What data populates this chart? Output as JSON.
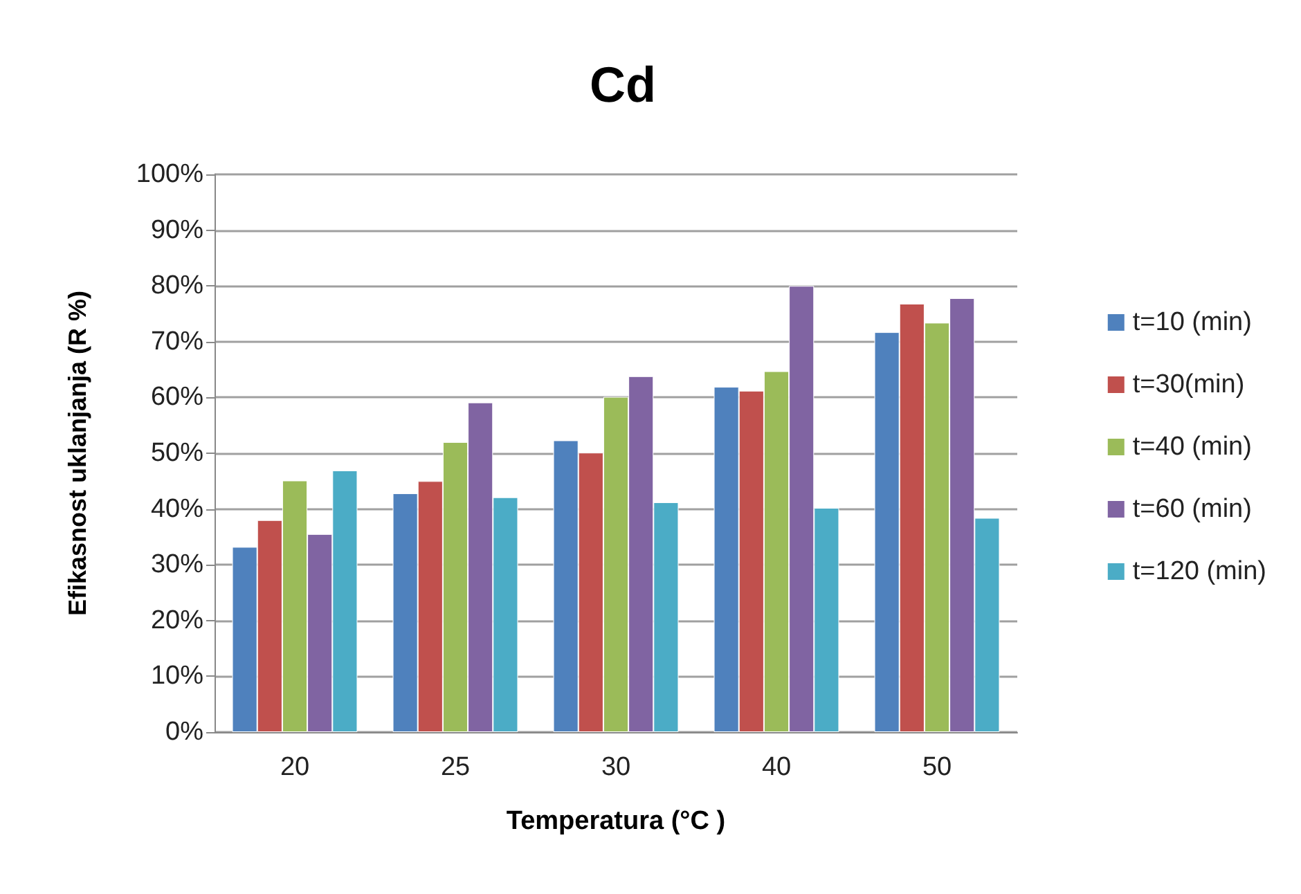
{
  "chart_data": {
    "type": "bar",
    "title": "Cd",
    "xlabel": "Temperatura (°C )",
    "ylabel": "Efikasnost uklanjanja (R %)",
    "categories": [
      "20",
      "25",
      "30",
      "40",
      "50"
    ],
    "series": [
      {
        "name": "t=10 (min)",
        "color": "#4f81bd",
        "values": [
          33.2,
          42.8,
          52.3,
          61.9,
          71.7
        ]
      },
      {
        "name": "t=30(min)",
        "color": "#c0504d",
        "values": [
          38.0,
          45.0,
          50.1,
          61.2,
          76.8
        ]
      },
      {
        "name": "t=40 (min)",
        "color": "#9bbb59",
        "values": [
          45.1,
          52.0,
          60.1,
          64.7,
          73.4
        ]
      },
      {
        "name": "t=60 (min)",
        "color": "#8064a2",
        "values": [
          35.5,
          59.1,
          63.8,
          80.0,
          77.8
        ]
      },
      {
        "name": "t=120 (min)",
        "color": "#4bacc6",
        "values": [
          46.9,
          42.1,
          41.2,
          40.2,
          38.4
        ]
      }
    ],
    "ylim": [
      0,
      100
    ],
    "yticks": [
      {
        "value": 0,
        "label": "0%"
      },
      {
        "value": 10,
        "label": "10%"
      },
      {
        "value": 20,
        "label": "20%"
      },
      {
        "value": 30,
        "label": "30%"
      },
      {
        "value": 40,
        "label": "40%"
      },
      {
        "value": 50,
        "label": "50%"
      },
      {
        "value": 60,
        "label": "60%"
      },
      {
        "value": 70,
        "label": "70%"
      },
      {
        "value": 80,
        "label": "80%"
      },
      {
        "value": 90,
        "label": "90%"
      },
      {
        "value": 100,
        "label": "100%"
      }
    ],
    "grid": "y",
    "legend": "right"
  }
}
